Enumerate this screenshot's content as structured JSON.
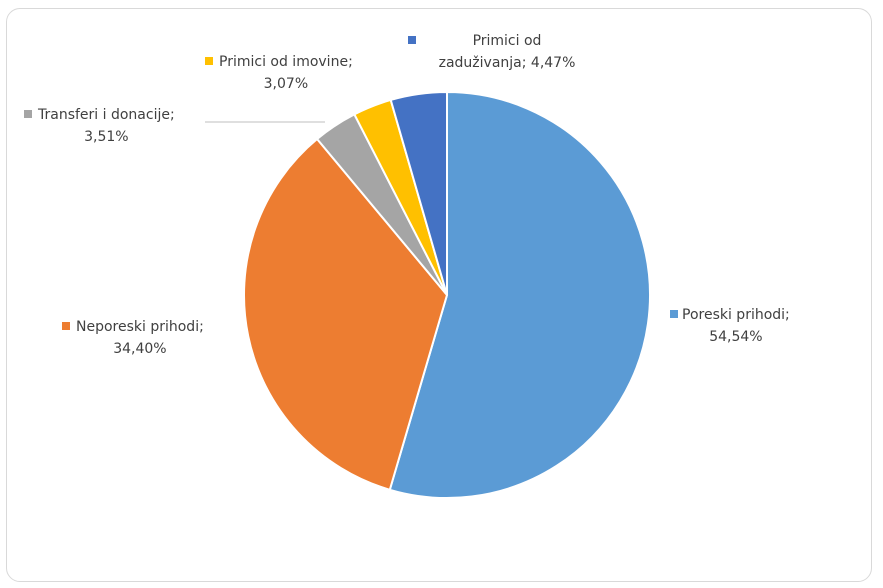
{
  "chart_data": {
    "type": "pie",
    "title": "",
    "legend": "none",
    "slices": [
      {
        "name": "Poreski prihodi",
        "value": 54.54,
        "value_label": "54,54%",
        "color": "#5b9bd5"
      },
      {
        "name": "Neporeski prihodi",
        "value": 34.4,
        "value_label": "34,40%",
        "color": "#ed7d31"
      },
      {
        "name": "Transferi i donacije",
        "value": 3.51,
        "value_label": "3,51%",
        "color": "#a5a5a5"
      },
      {
        "name": "Primici od imovine",
        "value": 3.07,
        "value_label": "3,07%",
        "color": "#ffc000"
      },
      {
        "name": "Primici od zaduživanja",
        "value": 4.47,
        "value_label": "4,47%",
        "color": "#4472c4"
      }
    ],
    "start_angle": "12 o'clock",
    "direction": "clockwise"
  }
}
